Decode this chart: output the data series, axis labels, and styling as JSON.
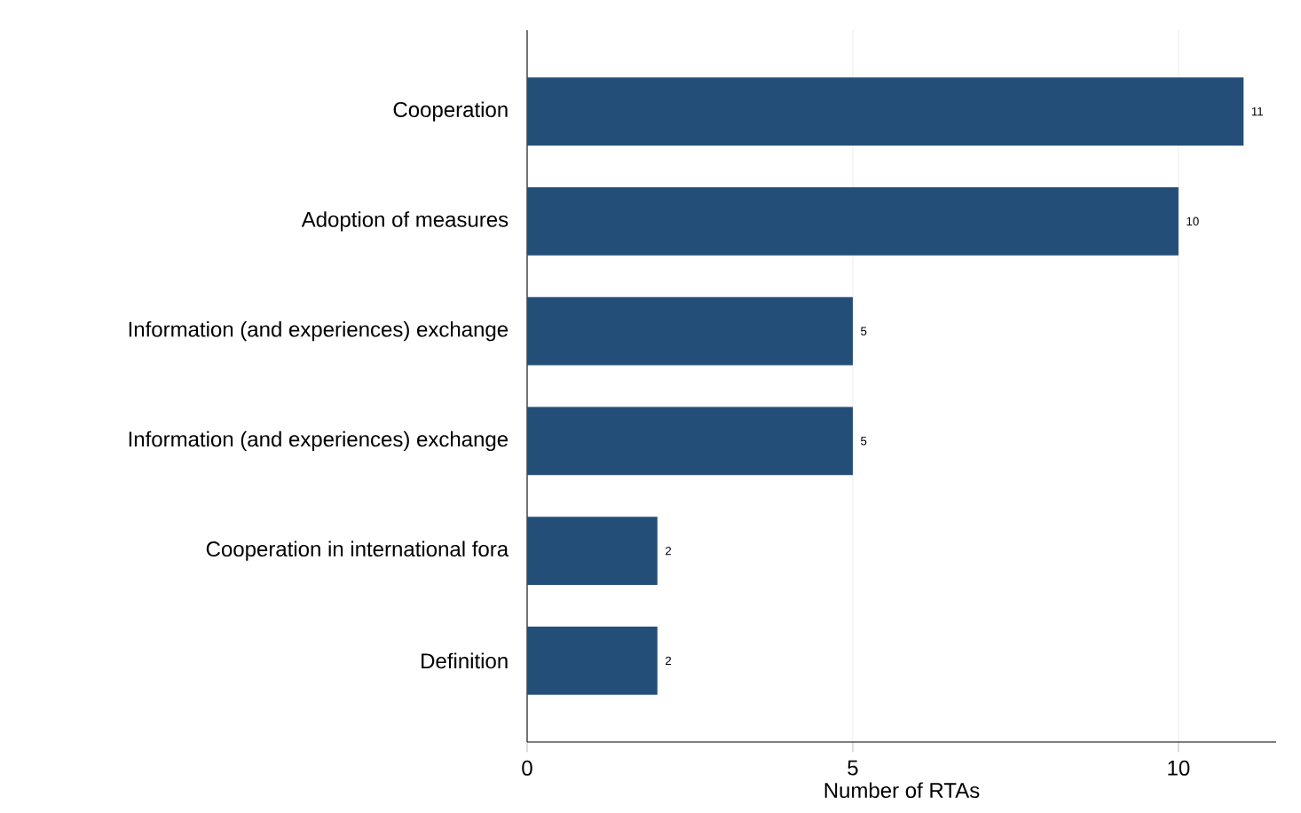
{
  "chart_data": {
    "type": "bar",
    "orientation": "horizontal",
    "xlabel": "Number of RTAs",
    "categories": [
      "Cooperation",
      "Adoption of measures",
      "Information (and experiences) exchange",
      "Information (and experiences) exchange",
      "Cooperation in international fora",
      "Definition"
    ],
    "values": [
      11,
      10,
      5,
      5,
      2,
      2
    ],
    "color": "#234e78",
    "xlim": [
      0,
      11.5
    ],
    "xticks": [
      0,
      5,
      10
    ],
    "grid": "x",
    "data_labels": true
  }
}
